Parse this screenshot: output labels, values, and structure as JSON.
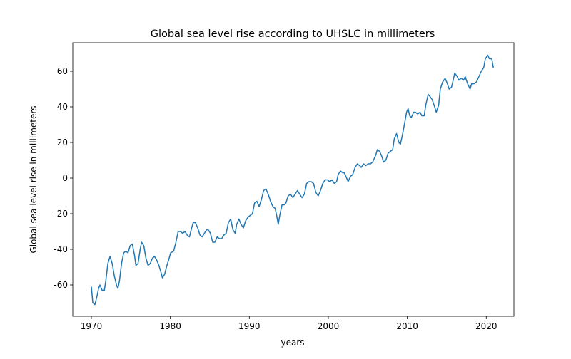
{
  "chart_data": {
    "type": "line",
    "title": "Global sea level rise according to UHSLC in millimeters",
    "x_label": "years",
    "y_label": "Global sea level rise in millimeters",
    "xlim": [
      1967.65,
      2023.5
    ],
    "ylim": [
      -77.6,
      76
    ],
    "xticks": [
      1970,
      1980,
      1990,
      2000,
      2010,
      2020
    ],
    "yticks": [
      -60,
      -40,
      -20,
      0,
      20,
      40,
      60
    ],
    "grid": false,
    "series": [
      {
        "color": "#1f77b4",
        "x": [
          1970.0,
          1970.18,
          1970.45,
          1970.73,
          1970.91,
          1971.09,
          1971.36,
          1971.64,
          1971.82,
          1972.09,
          1972.36,
          1972.64,
          1972.91,
          1973.18,
          1973.36,
          1973.55,
          1973.82,
          1974.09,
          1974.36,
          1974.64,
          1974.91,
          1975.18,
          1975.45,
          1975.64,
          1975.91,
          1976.18,
          1976.36,
          1976.64,
          1976.91,
          1977.18,
          1977.45,
          1977.73,
          1978.0,
          1978.27,
          1978.55,
          1978.82,
          1979.0,
          1979.28,
          1979.57,
          1979.85,
          1980.04,
          1980.42,
          1980.71,
          1980.99,
          1981.28,
          1981.56,
          1981.85,
          1982.13,
          1982.42,
          1982.7,
          1982.89,
          1983.18,
          1983.46,
          1983.75,
          1984.03,
          1984.31,
          1984.6,
          1984.79,
          1985.07,
          1985.36,
          1985.64,
          1985.93,
          1986.21,
          1986.5,
          1986.78,
          1987.07,
          1987.35,
          1987.64,
          1987.92,
          1988.21,
          1988.4,
          1988.68,
          1988.96,
          1989.25,
          1989.53,
          1989.82,
          1990.1,
          1990.39,
          1990.67,
          1990.96,
          1991.24,
          1991.53,
          1991.81,
          1992.1,
          1992.39,
          1992.68,
          1992.98,
          1993.27,
          1993.46,
          1993.66,
          1993.85,
          1994.14,
          1994.44,
          1994.63,
          1994.92,
          1995.21,
          1995.51,
          1995.8,
          1996.09,
          1996.38,
          1996.67,
          1996.97,
          1997.26,
          1997.55,
          1997.84,
          1998.13,
          1998.42,
          1998.72,
          1999.01,
          1999.3,
          1999.59,
          1999.88,
          2000.18,
          2000.47,
          2000.76,
          2001.05,
          2001.25,
          2001.54,
          2001.83,
          2002.02,
          2002.32,
          2002.51,
          2002.8,
          2003.09,
          2003.39,
          2003.68,
          2003.97,
          2004.17,
          2004.46,
          2004.75,
          2005.04,
          2005.33,
          2005.62,
          2006.01,
          2006.21,
          2006.5,
          2006.79,
          2006.99,
          2007.28,
          2007.57,
          2007.86,
          2008.15,
          2008.35,
          2008.64,
          2008.93,
          2009.13,
          2009.42,
          2009.71,
          2009.91,
          2010.1,
          2010.3,
          2010.51,
          2010.81,
          2011.02,
          2011.32,
          2011.63,
          2011.83,
          2012.14,
          2012.34,
          2012.65,
          2012.85,
          2013.16,
          2013.46,
          2013.67,
          2013.97,
          2014.18,
          2014.48,
          2014.79,
          2014.99,
          2015.3,
          2015.6,
          2015.81,
          2016.01,
          2016.32,
          2016.52,
          2016.83,
          2017.13,
          2017.33,
          2017.64,
          2017.95,
          2018.15,
          2018.46,
          2018.76,
          2019.07,
          2019.37,
          2019.68,
          2019.88,
          2020.19,
          2020.39,
          2020.7,
          2020.9
        ],
        "values": [
          -61,
          -70,
          -71,
          -66,
          -62,
          -60,
          -63,
          -63,
          -58,
          -48,
          -44,
          -48,
          -55,
          -60,
          -62,
          -58,
          -48,
          -42,
          -41,
          -42,
          -38,
          -37,
          -43,
          -49,
          -48,
          -40,
          -36,
          -38,
          -45,
          -49,
          -48,
          -45,
          -44,
          -46,
          -49,
          -53,
          -56,
          -54,
          -49,
          -45,
          -42,
          -41,
          -36,
          -30,
          -30,
          -31,
          -30,
          -32,
          -33,
          -28,
          -25,
          -25,
          -28,
          -32,
          -33,
          -31,
          -29,
          -29,
          -31,
          -36,
          -36,
          -33,
          -34,
          -34,
          -32,
          -31,
          -25,
          -23,
          -29,
          -31,
          -26,
          -23,
          -26,
          -28,
          -24,
          -22,
          -21,
          -20,
          -14,
          -13,
          -16,
          -12,
          -7,
          -6,
          -9,
          -13,
          -16,
          -17,
          -21,
          -26,
          -21,
          -15,
          -15,
          -14,
          -10,
          -9,
          -11,
          -9,
          -7,
          -9,
          -11,
          -9,
          -3,
          -2,
          -2,
          -3,
          -8,
          -10,
          -7,
          -3,
          -1,
          -1,
          -2,
          -1,
          -3,
          -2,
          2,
          4,
          3,
          3,
          0,
          -2,
          1,
          2,
          6,
          8,
          7,
          6,
          8,
          7,
          8,
          8,
          9,
          13,
          16,
          15,
          12,
          9,
          10,
          14,
          15,
          16,
          22,
          25,
          20,
          19,
          25,
          32,
          37,
          39,
          35,
          34,
          37,
          37,
          36,
          37,
          35,
          35,
          41,
          47,
          46,
          44,
          40,
          37,
          41,
          50,
          54,
          56,
          54,
          50,
          51,
          55,
          59,
          57,
          55,
          56,
          55,
          57,
          53,
          50,
          53,
          53,
          54,
          57,
          60,
          62,
          67,
          69,
          67,
          67,
          62
        ]
      }
    ]
  }
}
